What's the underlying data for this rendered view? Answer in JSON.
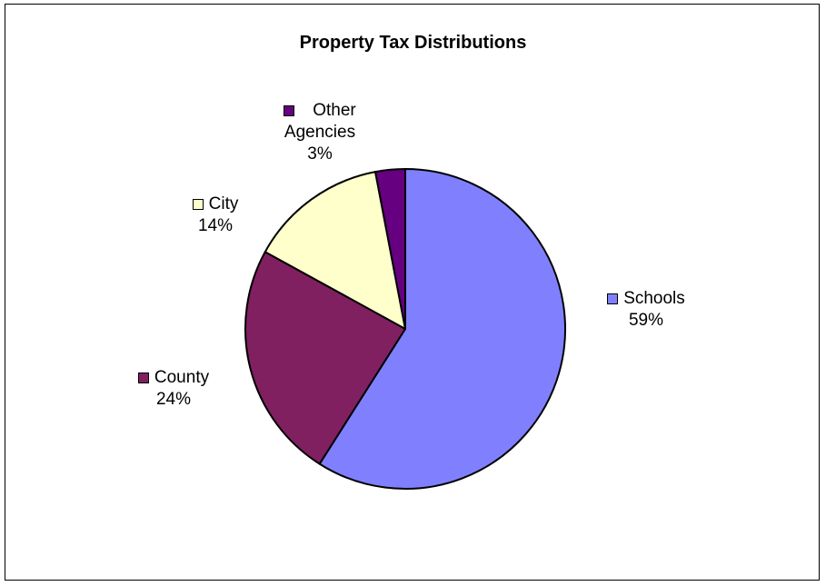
{
  "chart_data": {
    "type": "pie",
    "title": "Property Tax Distributions",
    "slices": [
      {
        "label": "Schools",
        "value": 59,
        "pct_label": "59%",
        "color": "#8080FF"
      },
      {
        "label": "County",
        "value": 24,
        "pct_label": "24%",
        "color": "#802060"
      },
      {
        "label": "City",
        "value": 14,
        "pct_label": "14%",
        "color": "#FFFFCC"
      },
      {
        "label": "Other Agencies",
        "label_lines": [
          "Other",
          "Agencies"
        ],
        "value": 3,
        "pct_label": "3%",
        "color": "#660080"
      }
    ],
    "legend": "none",
    "data_labels": "category-and-percent"
  }
}
